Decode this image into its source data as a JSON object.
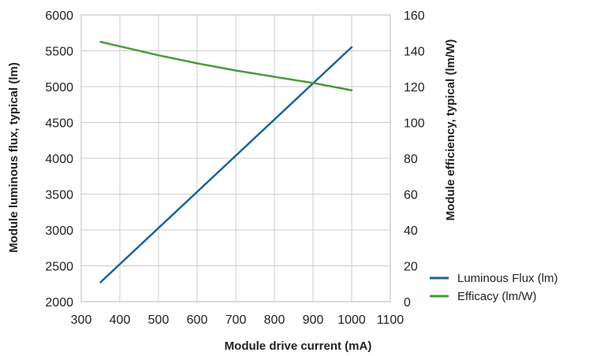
{
  "chart_data": {
    "type": "line",
    "title": "",
    "xlabel": "Module drive current (mA)",
    "ylabel_left": "Module luminous flux, typical (lm)",
    "ylabel_right": "Module efficiency, typical (lm/W)",
    "xlim": [
      300,
      1100
    ],
    "ylim_left": [
      2000,
      6000
    ],
    "ylim_right": [
      0,
      160
    ],
    "x_ticks": [
      "300",
      "400",
      "500",
      "600",
      "700",
      "800",
      "900",
      "1000",
      "1100"
    ],
    "y_left_ticks": [
      "2000",
      "2500",
      "3000",
      "3500",
      "4000",
      "4500",
      "5000",
      "5500",
      "6000"
    ],
    "y_right_ticks": [
      "0",
      "20",
      "40",
      "60",
      "80",
      "100",
      "120",
      "140",
      "160"
    ],
    "grid": true,
    "legend_position": "bottom-right",
    "series": [
      {
        "name": "Luminous Flux (lm)",
        "axis": "left",
        "color": "#1a6496",
        "x": [
          350,
          1000
        ],
        "y": [
          2270,
          5550
        ]
      },
      {
        "name": "Efficacy (lm/W)",
        "axis": "right",
        "color": "#4a9a3a",
        "x": [
          350,
          400,
          500,
          600,
          700,
          800,
          900,
          1000
        ],
        "y": [
          145,
          142.5,
          137.5,
          133,
          129,
          125.5,
          122,
          118
        ]
      }
    ]
  }
}
